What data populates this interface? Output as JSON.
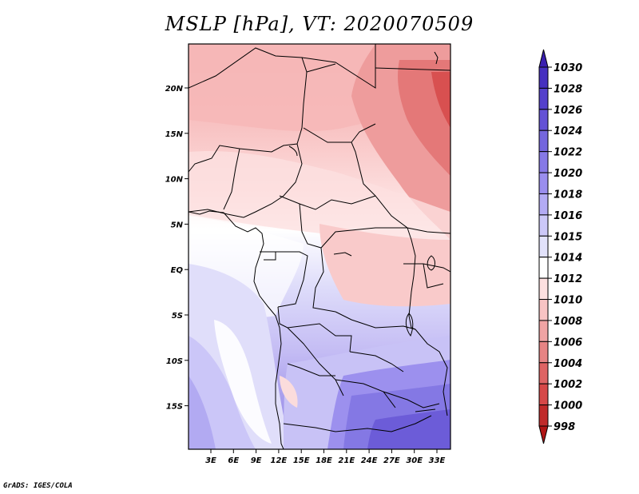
{
  "title": "MSLP [hPa], VT: 2020070509",
  "credit": "GrADS: IGES/COLA",
  "map": {
    "lat_labels": [
      "20N",
      "15N",
      "10N",
      "5N",
      "EQ",
      "5S",
      "10S",
      "15S"
    ],
    "lon_labels": [
      "3E",
      "6E",
      "9E",
      "12E",
      "15E",
      "18E",
      "21E",
      "24E",
      "27E",
      "30E",
      "33E"
    ]
  },
  "colorbar": {
    "levels": [
      "1030",
      "1028",
      "1026",
      "1024",
      "1022",
      "1020",
      "1018",
      "1016",
      "1015",
      "1014",
      "1012",
      "1010",
      "1008",
      "1006",
      "1004",
      "1002",
      "1000",
      "998"
    ],
    "colors": [
      "#3a1fb0",
      "#4630c0",
      "#5440cc",
      "#6452d6",
      "#7466de",
      "#8679e6",
      "#9a8eee",
      "#b3abf4",
      "#ccc8f8",
      "#e2e2fb",
      "#ffffff",
      "#fde0e0",
      "#f8c4c4",
      "#f0a4a4",
      "#e68484",
      "#de6464",
      "#d64848",
      "#c02a2a",
      "#b01414"
    ]
  }
}
